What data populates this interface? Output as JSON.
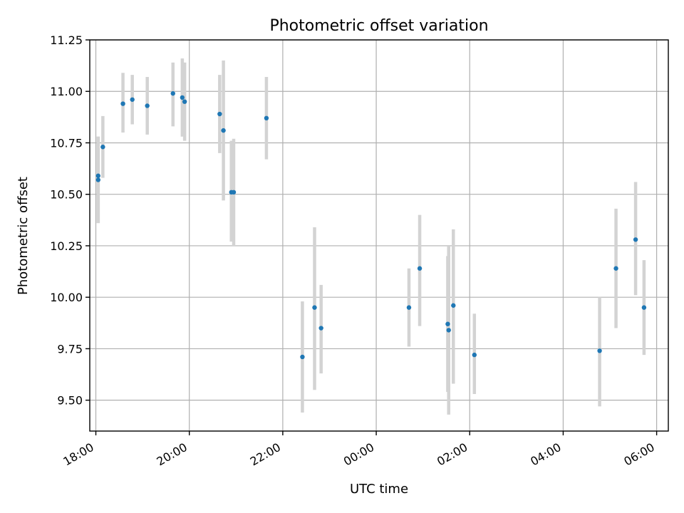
{
  "chart_data": {
    "type": "scatter",
    "title": "Photometric offset variation",
    "xlabel": "UTC time",
    "ylabel": "Photometric offset",
    "xlim": [
      17.87,
      30.25
    ],
    "ylim": [
      9.35,
      11.25
    ],
    "xticks": [
      {
        "value": 18,
        "label": "18:00"
      },
      {
        "value": 20,
        "label": "20:00"
      },
      {
        "value": 22,
        "label": "22:00"
      },
      {
        "value": 24,
        "label": "00:00"
      },
      {
        "value": 26,
        "label": "02:00"
      },
      {
        "value": 28,
        "label": "04:00"
      },
      {
        "value": 30,
        "label": "06:00"
      }
    ],
    "yticks": [
      {
        "value": 9.5,
        "label": "9.50"
      },
      {
        "value": 9.75,
        "label": "9.75"
      },
      {
        "value": 10.0,
        "label": "10.00"
      },
      {
        "value": 10.25,
        "label": "10.25"
      },
      {
        "value": 10.5,
        "label": "10.50"
      },
      {
        "value": 10.75,
        "label": "10.75"
      },
      {
        "value": 11.0,
        "label": "11.00"
      },
      {
        "value": 11.25,
        "label": "11.25"
      }
    ],
    "grid": true,
    "points": [
      {
        "x": 18.05,
        "y": 10.57,
        "lo": 10.36,
        "hi": 10.78
      },
      {
        "x": 18.05,
        "y": 10.59,
        "lo": 10.36,
        "hi": 10.78
      },
      {
        "x": 18.15,
        "y": 10.73,
        "lo": 10.58,
        "hi": 10.88
      },
      {
        "x": 18.58,
        "y": 10.94,
        "lo": 10.8,
        "hi": 11.09
      },
      {
        "x": 18.78,
        "y": 10.96,
        "lo": 10.84,
        "hi": 11.08
      },
      {
        "x": 19.1,
        "y": 10.93,
        "lo": 10.79,
        "hi": 11.07
      },
      {
        "x": 19.65,
        "y": 10.99,
        "lo": 10.83,
        "hi": 11.14
      },
      {
        "x": 19.85,
        "y": 10.97,
        "lo": 10.78,
        "hi": 11.16
      },
      {
        "x": 19.9,
        "y": 10.95,
        "lo": 10.76,
        "hi": 11.14
      },
      {
        "x": 20.65,
        "y": 10.89,
        "lo": 10.7,
        "hi": 11.08
      },
      {
        "x": 20.73,
        "y": 10.81,
        "lo": 10.47,
        "hi": 11.15
      },
      {
        "x": 20.9,
        "y": 10.51,
        "lo": 10.27,
        "hi": 10.76
      },
      {
        "x": 20.95,
        "y": 10.51,
        "lo": 10.25,
        "hi": 10.77
      },
      {
        "x": 21.65,
        "y": 10.87,
        "lo": 10.67,
        "hi": 11.07
      },
      {
        "x": 22.42,
        "y": 9.71,
        "lo": 9.44,
        "hi": 9.98
      },
      {
        "x": 22.68,
        "y": 9.95,
        "lo": 9.55,
        "hi": 10.34
      },
      {
        "x": 22.82,
        "y": 9.85,
        "lo": 9.63,
        "hi": 10.06
      },
      {
        "x": 24.7,
        "y": 9.95,
        "lo": 9.76,
        "hi": 10.14
      },
      {
        "x": 24.93,
        "y": 10.14,
        "lo": 9.86,
        "hi": 10.4
      },
      {
        "x": 25.53,
        "y": 9.87,
        "lo": 9.54,
        "hi": 10.2
      },
      {
        "x": 25.55,
        "y": 9.84,
        "lo": 9.43,
        "hi": 10.25
      },
      {
        "x": 25.65,
        "y": 9.96,
        "lo": 9.58,
        "hi": 10.33
      },
      {
        "x": 26.1,
        "y": 9.72,
        "lo": 9.53,
        "hi": 9.92
      },
      {
        "x": 28.78,
        "y": 9.74,
        "lo": 9.47,
        "hi": 10.0
      },
      {
        "x": 29.13,
        "y": 10.14,
        "lo": 9.85,
        "hi": 10.43
      },
      {
        "x": 29.55,
        "y": 10.28,
        "lo": 10.01,
        "hi": 10.56
      },
      {
        "x": 29.73,
        "y": 9.95,
        "lo": 9.72,
        "hi": 10.18
      }
    ]
  }
}
